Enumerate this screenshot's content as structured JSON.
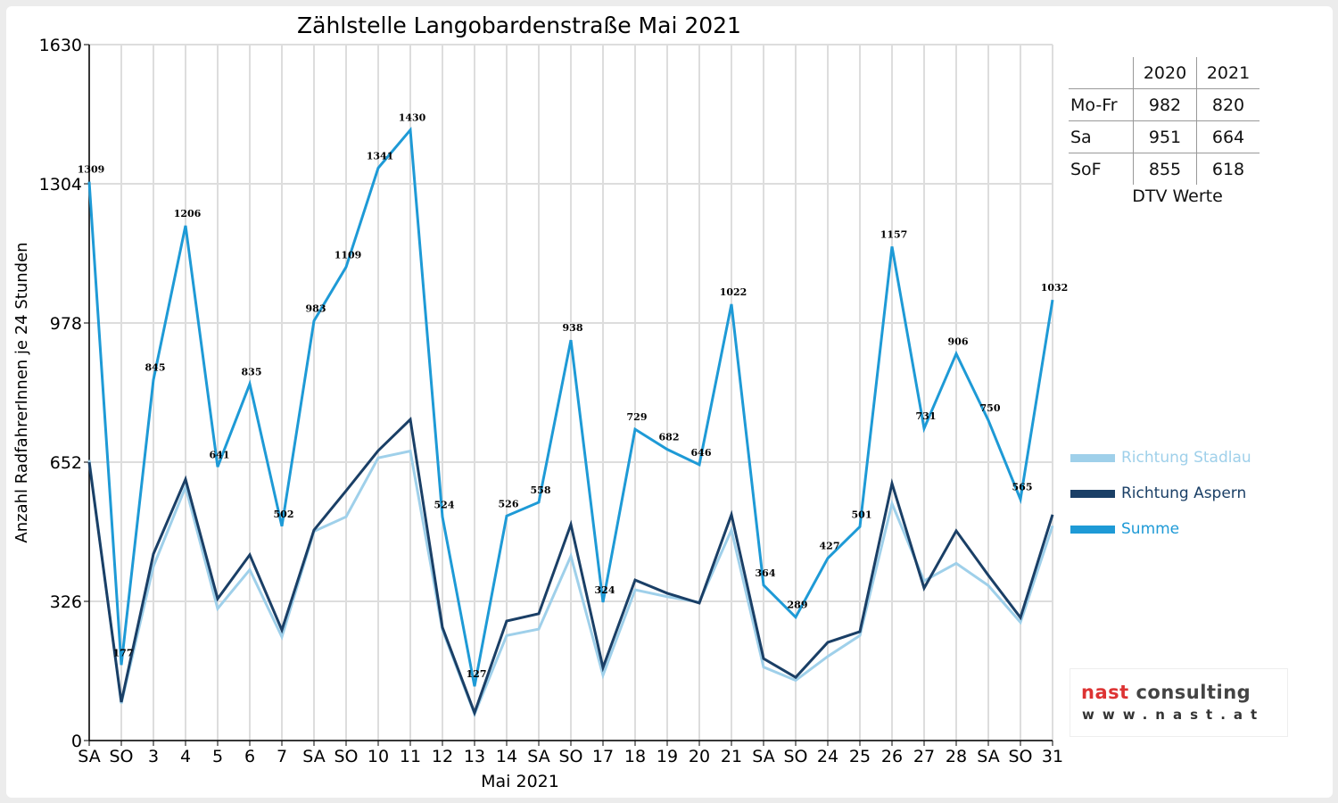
{
  "chart_data": {
    "type": "line",
    "title": "Zählstelle Langobardenstraße Mai 2021",
    "xlabel": "Mai 2021",
    "ylabel": "Anzahl RadfahrerInnen je 24 Stunden",
    "ylim": [
      0,
      1630
    ],
    "yticks": [
      0,
      326,
      652,
      978,
      1304,
      1630
    ],
    "x": [
      1,
      2,
      3,
      4,
      5,
      6,
      7,
      8,
      9,
      10,
      11,
      12,
      13,
      14,
      15,
      16,
      17,
      18,
      19,
      20,
      21,
      22,
      23,
      24,
      25,
      26,
      27,
      28,
      29,
      30,
      31
    ],
    "xtick_labels": [
      "SA",
      "SO",
      "3",
      "4",
      "5",
      "6",
      "7",
      "SA",
      "SO",
      "10",
      "11",
      "12",
      "13",
      "14",
      "SA",
      "SO",
      "17",
      "18",
      "19",
      "20",
      "21",
      "SA",
      "SO",
      "24",
      "25",
      "26",
      "27",
      "28",
      "SA",
      "SO",
      "31"
    ],
    "xtick_red": [
      2,
      9,
      13,
      16,
      23,
      24,
      30
    ],
    "grid": true,
    "legend_position": "right",
    "series": [
      {
        "name": "Richtung Stadlau",
        "color": "#9fd0ea",
        "values": [
          657,
          87,
          408,
          594,
          309,
          400,
          243,
          490,
          524,
          662,
          678,
          259,
          62,
          246,
          261,
          432,
          153,
          353,
          337,
          324,
          493,
          172,
          141,
          197,
          246,
          555,
          374,
          415,
          363,
          277,
          503
        ]
      },
      {
        "name": "Richtung Aspern",
        "color": "#1a3f66",
        "values": [
          652,
          90,
          437,
          612,
          332,
          435,
          259,
          493,
          585,
          679,
          752,
          265,
          65,
          280,
          297,
          506,
          171,
          376,
          345,
          322,
          529,
          192,
          148,
          230,
          255,
          602,
          357,
          491,
          387,
          288,
          529
        ]
      },
      {
        "name": "Summe",
        "color": "#1e9ad6",
        "values": [
          1309,
          177,
          845,
          1206,
          641,
          835,
          502,
          983,
          1109,
          1341,
          1430,
          524,
          127,
          526,
          558,
          938,
          324,
          729,
          682,
          646,
          1022,
          364,
          289,
          427,
          501,
          1157,
          731,
          906,
          750,
          565,
          1032
        ],
        "data_labels": true
      }
    ]
  },
  "dtv_table": {
    "headers": [
      "",
      "2020",
      "2021"
    ],
    "rows": [
      {
        "label": "Mo-Fr",
        "v2020": "982",
        "v2021": "820"
      },
      {
        "label": "Sa",
        "v2020": "951",
        "v2021": "664"
      },
      {
        "label": "SoF",
        "v2020": "855",
        "v2021": "618"
      }
    ],
    "caption": "DTV Werte"
  },
  "logo": {
    "line1a": "nast",
    "line1b": " consulting",
    "line2": "www.nast.at"
  }
}
